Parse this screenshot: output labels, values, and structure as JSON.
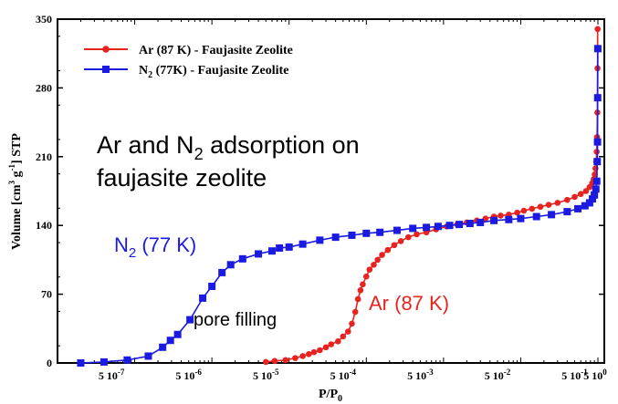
{
  "chart_data": {
    "type": "line",
    "xscale": "log",
    "xlabel": {
      "main": "P/P",
      "sub": "0"
    },
    "ylabel": {
      "p1": "Volume [cm",
      "sup1": "3",
      "p2": " g",
      "sup2": "-1",
      "p3": "] STP"
    },
    "xlim": [
      1e-07,
      1
    ],
    "ylim": [
      0,
      350
    ],
    "x_ticks": [
      {
        "value": 5e-07,
        "mant": "5",
        "base": "10",
        "exp": "-7"
      },
      {
        "value": 5e-06,
        "mant": "5",
        "base": "10",
        "exp": "-6"
      },
      {
        "value": 5e-05,
        "mant": "5",
        "base": "10",
        "exp": "-5"
      },
      {
        "value": 0.0005,
        "mant": "5",
        "base": "10",
        "exp": "-4"
      },
      {
        "value": 0.005,
        "mant": "5",
        "base": "10",
        "exp": "-3"
      },
      {
        "value": 0.05,
        "mant": "5",
        "base": "10",
        "exp": "-2"
      },
      {
        "value": 0.5,
        "mant": "5",
        "base": "10",
        "exp": "-1"
      },
      {
        "value": 5.0,
        "mant": "5",
        "base": "10",
        "exp": "0"
      }
    ],
    "y_ticks": [
      0,
      70,
      140,
      210,
      280,
      350
    ],
    "legend": {
      "placement": "top-left",
      "entries": [
        {
          "label": "Ar (87 K)  - Faujasite Zeolite",
          "series": 0
        },
        {
          "pre": "N",
          "sub": "2",
          "post": " (77K)  - Faujasite Zeolite",
          "series": 1
        }
      ]
    },
    "annotations": {
      "title_line1_a": "Ar and N",
      "title_line1_sub": "2",
      "title_line1_b": " adsorption on",
      "title_line2": "faujasite zeolite",
      "n2_pre": "N",
      "n2_sub": "2",
      "n2_post": " (77 K)",
      "pore": "pore filling",
      "ar": "Ar (87 K)"
    },
    "series": [
      {
        "color": "#e8231f",
        "marker": "circle",
        "points": [
          [
            5e-05,
            1
          ],
          [
            6.5e-05,
            2
          ],
          [
            9e-05,
            3
          ],
          [
            0.00012,
            5
          ],
          [
            0.00015,
            7
          ],
          [
            0.00018,
            9
          ],
          [
            0.00021,
            11
          ],
          [
            0.00025,
            13
          ],
          [
            0.0003,
            16
          ],
          [
            0.00035,
            19
          ],
          [
            0.00043,
            22
          ],
          [
            0.0005,
            27
          ],
          [
            0.00058,
            32
          ],
          [
            0.00065,
            40
          ],
          [
            0.00072,
            52
          ],
          [
            0.00078,
            65
          ],
          [
            0.00084,
            74
          ],
          [
            0.0009,
            80
          ],
          [
            0.001,
            88
          ],
          [
            0.0011,
            95
          ],
          [
            0.00125,
            100
          ],
          [
            0.0014,
            105
          ],
          [
            0.0016,
            110
          ],
          [
            0.0019,
            115
          ],
          [
            0.0023,
            120
          ],
          [
            0.0028,
            124
          ],
          [
            0.0035,
            128
          ],
          [
            0.0045,
            131
          ],
          [
            0.006,
            133
          ],
          [
            0.008,
            136
          ],
          [
            0.011,
            139
          ],
          [
            0.015,
            141
          ],
          [
            0.02,
            143
          ],
          [
            0.027,
            145
          ],
          [
            0.035,
            147
          ],
          [
            0.045,
            149
          ],
          [
            0.055,
            150
          ],
          [
            0.07,
            151
          ],
          [
            0.09,
            153
          ],
          [
            0.11,
            155
          ],
          [
            0.14,
            157
          ],
          [
            0.18,
            159
          ],
          [
            0.23,
            161
          ],
          [
            0.3,
            163
          ],
          [
            0.4,
            166
          ],
          [
            0.5,
            169
          ],
          [
            0.6,
            172
          ],
          [
            0.7,
            175
          ],
          [
            0.78,
            179
          ],
          [
            0.84,
            183
          ],
          [
            0.88,
            187
          ],
          [
            0.91,
            192
          ],
          [
            0.93,
            198
          ],
          [
            0.95,
            205
          ],
          [
            0.965,
            215
          ],
          [
            0.975,
            230
          ],
          [
            0.983,
            255
          ],
          [
            0.988,
            300
          ],
          [
            0.992,
            340
          ]
        ]
      },
      {
        "color": "#1a1ae0",
        "marker": "square",
        "points": [
          [
            2e-07,
            0
          ],
          [
            4e-07,
            1
          ],
          [
            8e-07,
            3
          ],
          [
            1.5e-06,
            7
          ],
          [
            2.3e-06,
            16
          ],
          [
            2.9e-06,
            23
          ],
          [
            3.6e-06,
            29
          ],
          [
            5.2e-06,
            44
          ],
          [
            7.6e-06,
            66
          ],
          [
            1e-05,
            78
          ],
          [
            1.35e-05,
            92
          ],
          [
            1.75e-05,
            100
          ],
          [
            2.5e-05,
            106
          ],
          [
            4e-05,
            111
          ],
          [
            6e-05,
            114
          ],
          [
            7.5e-05,
            117
          ],
          [
            0.0001,
            118
          ],
          [
            0.00015,
            121
          ],
          [
            0.00025,
            125
          ],
          [
            0.0004,
            128
          ],
          [
            0.00065,
            130
          ],
          [
            0.001,
            132
          ],
          [
            0.0015,
            133
          ],
          [
            0.0025,
            135
          ],
          [
            0.004,
            137
          ],
          [
            0.006,
            138
          ],
          [
            0.0085,
            139
          ],
          [
            0.012,
            140
          ],
          [
            0.016,
            141
          ],
          [
            0.022,
            142
          ],
          [
            0.03,
            143
          ],
          [
            0.045,
            145
          ],
          [
            0.07,
            146
          ],
          [
            0.1,
            147
          ],
          [
            0.16,
            149
          ],
          [
            0.25,
            151
          ],
          [
            0.4,
            154
          ],
          [
            0.55,
            157
          ],
          [
            0.68,
            160
          ],
          [
            0.78,
            163
          ],
          [
            0.85,
            167
          ],
          [
            0.9,
            171
          ],
          [
            0.94,
            177
          ],
          [
            0.965,
            185
          ],
          [
            0.98,
            205
          ],
          [
            0.988,
            225
          ],
          [
            0.993,
            270
          ],
          [
            0.997,
            320
          ]
        ]
      }
    ]
  }
}
